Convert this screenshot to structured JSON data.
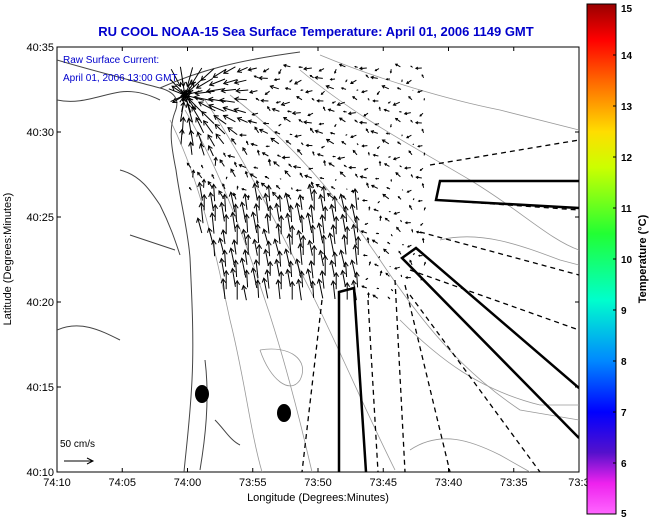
{
  "chart_data": {
    "type": "vector-field-map",
    "title": "RU COOL  NOAA-15  Sea Surface Temperature:  April 01, 2006 1149 GMT",
    "xlabel": "Longitude (Degrees:Minutes)",
    "ylabel": "Latitude (Degrees:Minutes)",
    "x_ticks": [
      "74:10",
      "74:05",
      "74:00",
      "73:55",
      "73:50",
      "73:45",
      "73:40",
      "73:35",
      "73:3"
    ],
    "y_ticks": [
      "40:10",
      "40:15",
      "40:20",
      "40:25",
      "40:30",
      "40:35"
    ],
    "xlim_deg": [
      -74.1667,
      -73.5
    ],
    "ylim_deg": [
      40.1667,
      40.5833
    ],
    "annotations": {
      "line1": "Raw Surface Current:",
      "line2": "April 01, 2006 13:00 GMT",
      "scale_label": "50 cm/s"
    },
    "colorbar": {
      "label": "Temperature (°C)",
      "min": 5,
      "max": 15,
      "ticks": [
        "5",
        "6",
        "7",
        "8",
        "9",
        "10",
        "11",
        "12",
        "13",
        "14",
        "15"
      ]
    },
    "colors": {
      "title": "#0000cc",
      "annotation": "#0000cc",
      "land_contour": "#444444",
      "bathymetry": "#999999",
      "vectors": "#000000"
    }
  }
}
